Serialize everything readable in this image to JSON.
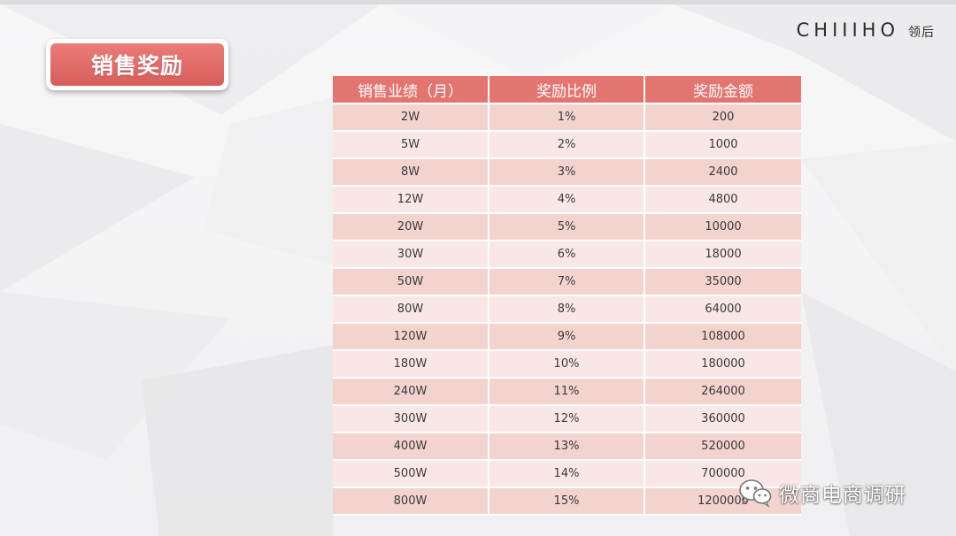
{
  "slide": {
    "title": "销售奖励"
  },
  "brand": {
    "latin": "CHIIIHO",
    "cn": "领后"
  },
  "table": {
    "headers": [
      "销售业绩（月）",
      "奖励比例",
      "奖励金额"
    ],
    "rows": [
      [
        "2W",
        "1%",
        "200"
      ],
      [
        "5W",
        "2%",
        "1000"
      ],
      [
        "8W",
        "3%",
        "2400"
      ],
      [
        "12W",
        "4%",
        "4800"
      ],
      [
        "20W",
        "5%",
        "10000"
      ],
      [
        "30W",
        "6%",
        "18000"
      ],
      [
        "50W",
        "7%",
        "35000"
      ],
      [
        "80W",
        "8%",
        "64000"
      ],
      [
        "120W",
        "9%",
        "108000"
      ],
      [
        "180W",
        "10%",
        "180000"
      ],
      [
        "240W",
        "11%",
        "264000"
      ],
      [
        "300W",
        "12%",
        "360000"
      ],
      [
        "400W",
        "13%",
        "520000"
      ],
      [
        "500W",
        "14%",
        "700000"
      ],
      [
        "800W",
        "15%",
        "1200000"
      ]
    ]
  },
  "watermark": {
    "text": "微商电商调研",
    "icon": "wechat-icon"
  },
  "colors": {
    "header": "#e27570",
    "row_odd": "#f3d3ce",
    "row_even": "#f8e7e4",
    "title_badge": "#e06b67"
  }
}
